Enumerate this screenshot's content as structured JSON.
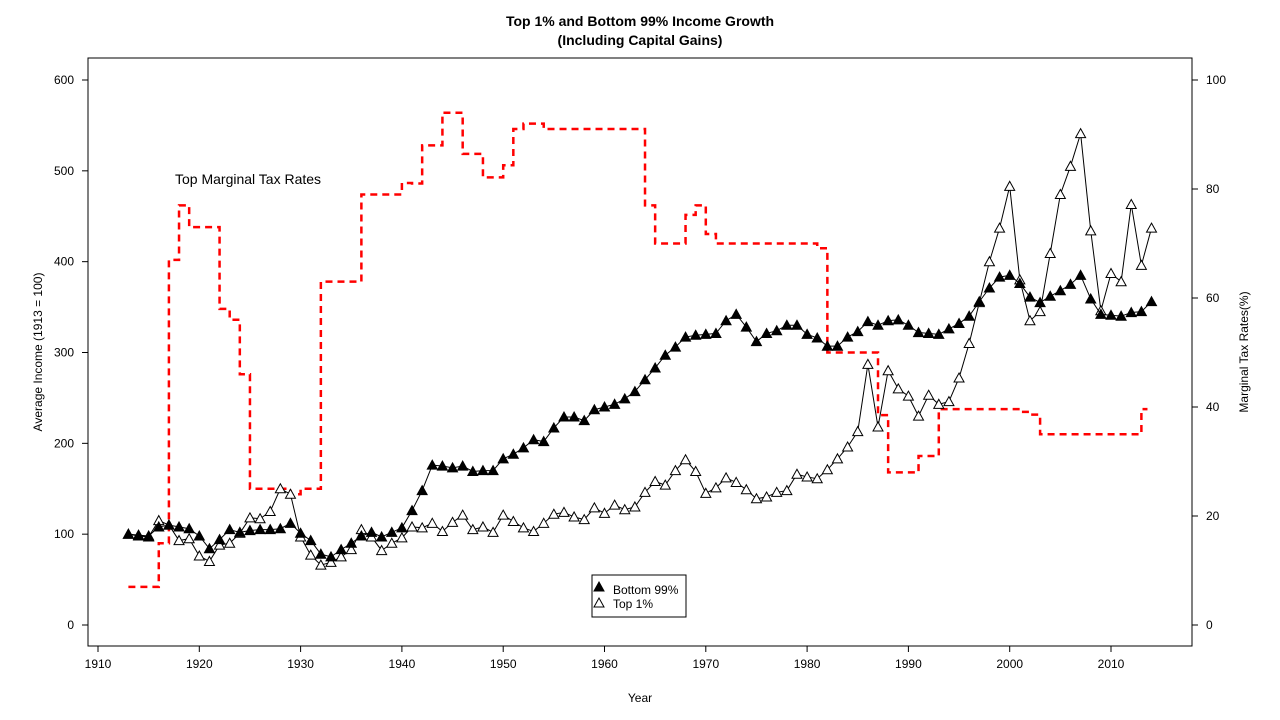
{
  "chart_data": {
    "type": "line",
    "title": "Top 1% and Bottom 99% Income Growth",
    "subtitle": "(Including Capital Gains)",
    "xlabel": "Year",
    "ylabel": "Average Income (1913 = 100)",
    "y2label": "Marginal Tax Rates(%)",
    "xlim": [
      1910,
      2015
    ],
    "ylim": [
      0,
      600
    ],
    "y2lim": [
      0,
      100
    ],
    "x_ticks": [
      1910,
      1920,
      1930,
      1940,
      1950,
      1960,
      1970,
      1980,
      1990,
      2000,
      2010
    ],
    "y_ticks": [
      0,
      100,
      200,
      300,
      400,
      500,
      600
    ],
    "y2_ticks": [
      0,
      20,
      40,
      60,
      80,
      100
    ],
    "grid": false,
    "legend_position": "bottom-center",
    "annotations": [
      {
        "text": "Top Marginal Tax Rates",
        "x": 1917.5,
        "y": 490
      }
    ],
    "series": [
      {
        "name": "Bottom 99%",
        "marker": "filled-triangle",
        "axis": "left",
        "color": "#000000",
        "x": [
          1913,
          1914,
          1915,
          1916,
          1917,
          1918,
          1919,
          1920,
          1921,
          1922,
          1923,
          1924,
          1925,
          1926,
          1927,
          1928,
          1929,
          1930,
          1931,
          1932,
          1933,
          1934,
          1935,
          1936,
          1937,
          1938,
          1939,
          1940,
          1941,
          1942,
          1943,
          1944,
          1945,
          1946,
          1947,
          1948,
          1949,
          1950,
          1951,
          1952,
          1953,
          1954,
          1955,
          1956,
          1957,
          1958,
          1959,
          1960,
          1961,
          1962,
          1963,
          1964,
          1965,
          1966,
          1967,
          1968,
          1969,
          1970,
          1971,
          1972,
          1973,
          1974,
          1975,
          1976,
          1977,
          1978,
          1979,
          1980,
          1981,
          1982,
          1983,
          1984,
          1985,
          1986,
          1987,
          1988,
          1989,
          1990,
          1991,
          1992,
          1993,
          1994,
          1995,
          1996,
          1997,
          1998,
          1999,
          2000,
          2001,
          2002,
          2003,
          2004,
          2005,
          2006,
          2007,
          2008,
          2009,
          2010,
          2011,
          2012,
          2013,
          2014
        ],
        "values": [
          100,
          99,
          98,
          108,
          110,
          108,
          106,
          98,
          84,
          94,
          105,
          102,
          104,
          105,
          105,
          106,
          112,
          101,
          93,
          78,
          75,
          83,
          90,
          98,
          102,
          97,
          102,
          107,
          126,
          148,
          176,
          175,
          173,
          175,
          169,
          170,
          170,
          183,
          188,
          195,
          204,
          202,
          217,
          229,
          229,
          225,
          237,
          240,
          243,
          249,
          257,
          270,
          283,
          297,
          306,
          317,
          319,
          320,
          321,
          335,
          342,
          328,
          312,
          321,
          324,
          330,
          330,
          320,
          316,
          307,
          307,
          317,
          323,
          334,
          330,
          335,
          336,
          330,
          322,
          321,
          320,
          326,
          332,
          340,
          356,
          371,
          383,
          385,
          376,
          361,
          355,
          362,
          368,
          375,
          385,
          359,
          342,
          341,
          340,
          344,
          345,
          356
        ]
      },
      {
        "name": "Top 1%",
        "marker": "open-triangle",
        "axis": "left",
        "color": "#000000",
        "x": [
          1913,
          1914,
          1915,
          1916,
          1917,
          1918,
          1919,
          1920,
          1921,
          1922,
          1923,
          1924,
          1925,
          1926,
          1927,
          1928,
          1929,
          1930,
          1931,
          1932,
          1933,
          1934,
          1935,
          1936,
          1937,
          1938,
          1939,
          1940,
          1941,
          1942,
          1943,
          1944,
          1945,
          1946,
          1947,
          1948,
          1949,
          1950,
          1951,
          1952,
          1953,
          1954,
          1955,
          1956,
          1957,
          1958,
          1959,
          1960,
          1961,
          1962,
          1963,
          1964,
          1965,
          1966,
          1967,
          1968,
          1969,
          1970,
          1971,
          1972,
          1973,
          1974,
          1975,
          1976,
          1977,
          1978,
          1979,
          1980,
          1981,
          1982,
          1983,
          1984,
          1985,
          1986,
          1987,
          1988,
          1989,
          1990,
          1991,
          1992,
          1993,
          1994,
          1995,
          1996,
          1997,
          1998,
          1999,
          2000,
          2001,
          2002,
          2003,
          2004,
          2005,
          2006,
          2007,
          2008,
          2009,
          2010,
          2011,
          2012,
          2013,
          2014
        ],
        "values": [
          100,
          98,
          97,
          115,
          110,
          93,
          95,
          76,
          70,
          88,
          90,
          101,
          118,
          117,
          125,
          150,
          144,
          97,
          77,
          66,
          69,
          75,
          83,
          105,
          97,
          82,
          90,
          96,
          108,
          107,
          112,
          103,
          113,
          121,
          105,
          108,
          102,
          121,
          114,
          107,
          103,
          112,
          122,
          124,
          119,
          116,
          129,
          123,
          132,
          127,
          130,
          146,
          158,
          154,
          170,
          182,
          169,
          145,
          151,
          162,
          157,
          149,
          139,
          141,
          146,
          148,
          166,
          163,
          161,
          171,
          183,
          196,
          213,
          287,
          218,
          280,
          260,
          252,
          230,
          253,
          243,
          246,
          272,
          310,
          355,
          400,
          437,
          483,
          380,
          335,
          345,
          409,
          474,
          505,
          541,
          434,
          346,
          387,
          378,
          463,
          396,
          437
        ]
      },
      {
        "name": "Top Marginal Tax Rates",
        "marker": "none",
        "line_style": "dashed",
        "axis": "right",
        "color": "#ff0000",
        "x": [
          1913,
          1914,
          1915,
          1916,
          1917,
          1918,
          1919,
          1920,
          1921,
          1922,
          1923,
          1924,
          1925,
          1926,
          1927,
          1928,
          1929,
          1930,
          1931,
          1932,
          1933,
          1934,
          1935,
          1936,
          1937,
          1938,
          1939,
          1940,
          1941,
          1942,
          1943,
          1944,
          1945,
          1946,
          1947,
          1948,
          1949,
          1950,
          1951,
          1952,
          1953,
          1954,
          1955,
          1956,
          1957,
          1958,
          1959,
          1960,
          1961,
          1962,
          1963,
          1964,
          1965,
          1966,
          1967,
          1968,
          1969,
          1970,
          1971,
          1972,
          1973,
          1974,
          1975,
          1976,
          1977,
          1978,
          1979,
          1980,
          1981,
          1982,
          1983,
          1984,
          1985,
          1986,
          1987,
          1988,
          1989,
          1990,
          1991,
          1992,
          1993,
          1994,
          1995,
          1996,
          1997,
          1998,
          1999,
          2000,
          2001,
          2002,
          2003,
          2004,
          2005,
          2006,
          2007,
          2008,
          2009,
          2010,
          2011,
          2012,
          2013
        ],
        "values": [
          7,
          7,
          7,
          15,
          67,
          77,
          73,
          73,
          73,
          58,
          56,
          46,
          25,
          25,
          25,
          25,
          24,
          25,
          25,
          63,
          63,
          63,
          63,
          79,
          79,
          79,
          79,
          81.1,
          81,
          88,
          88,
          94,
          94,
          86.45,
          86.45,
          82.13,
          82.13,
          84.36,
          91,
          92,
          92,
          91,
          91,
          91,
          91,
          91,
          91,
          91,
          91,
          91,
          91,
          77,
          70,
          70,
          70,
          75.25,
          77,
          71.75,
          70,
          70,
          70,
          70,
          70,
          70,
          70,
          70,
          70,
          70,
          69.125,
          50,
          50,
          50,
          50,
          50,
          38.5,
          28,
          28,
          28,
          31,
          31,
          39.6,
          39.6,
          39.6,
          39.6,
          39.6,
          39.6,
          39.6,
          39.6,
          39.1,
          38.6,
          35,
          35,
          35,
          35,
          35,
          35,
          35,
          35,
          35,
          35,
          39.6
        ]
      }
    ],
    "legend": {
      "entries": [
        {
          "label": "Bottom 99%",
          "marker": "filled-triangle"
        },
        {
          "label": "Top 1%",
          "marker": "open-triangle"
        }
      ]
    }
  }
}
